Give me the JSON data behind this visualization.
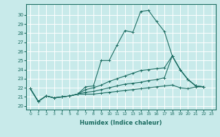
{
  "title": "",
  "xlabel": "Humidex (Indice chaleur)",
  "bg_color": "#c8eaea",
  "grid_color": "#ffffff",
  "line_color": "#1a6b60",
  "xlim": [
    -0.5,
    23.5
  ],
  "ylim": [
    19.6,
    31.2
  ],
  "xtick_labels": [
    "0",
    "1",
    "2",
    "3",
    "4",
    "5",
    "6",
    "7",
    "8",
    "9",
    "10",
    "11",
    "12",
    "13",
    "14",
    "15",
    "16",
    "17",
    "18",
    "19",
    "20",
    "21",
    "22",
    "23"
  ],
  "ytick_values": [
    20,
    21,
    22,
    23,
    24,
    25,
    26,
    27,
    28,
    29,
    30
  ],
  "series": [
    {
      "x": [
        0,
        1,
        2,
        3,
        4,
        5,
        6,
        7,
        8,
        9,
        10,
        11,
        12,
        13,
        14,
        15,
        16,
        17,
        18,
        19,
        20,
        21,
        22
      ],
      "y": [
        21.9,
        20.5,
        21.1,
        20.9,
        21.0,
        21.1,
        21.3,
        22.1,
        22.2,
        25.0,
        25.0,
        26.7,
        28.3,
        28.1,
        30.4,
        30.5,
        29.3,
        28.2,
        25.5,
        24.0,
        22.9,
        22.2,
        22.1
      ]
    },
    {
      "x": [
        0,
        1,
        2,
        3,
        4,
        5,
        6,
        7,
        8,
        9,
        10,
        11,
        12,
        13,
        14,
        15,
        16,
        17,
        18,
        19,
        20,
        21,
        22
      ],
      "y": [
        21.9,
        20.5,
        21.1,
        20.9,
        21.0,
        21.1,
        21.3,
        21.8,
        22.0,
        22.3,
        22.7,
        23.0,
        23.3,
        23.6,
        23.9,
        24.0,
        24.1,
        24.2,
        25.5,
        24.0,
        22.9,
        22.2,
        22.1
      ]
    },
    {
      "x": [
        0,
        1,
        2,
        3,
        4,
        5,
        6,
        7,
        8,
        9,
        10,
        11,
        12,
        13,
        14,
        15,
        16,
        17,
        18,
        19,
        20,
        21,
        22
      ],
      "y": [
        21.9,
        20.5,
        21.1,
        20.9,
        21.0,
        21.1,
        21.3,
        21.5,
        21.6,
        21.8,
        22.0,
        22.2,
        22.4,
        22.5,
        22.6,
        22.8,
        22.9,
        23.1,
        25.5,
        24.0,
        22.9,
        22.2,
        22.1
      ]
    },
    {
      "x": [
        0,
        1,
        2,
        3,
        4,
        5,
        6,
        7,
        8,
        9,
        10,
        11,
        12,
        13,
        14,
        15,
        16,
        17,
        18,
        19,
        20,
        21,
        22
      ],
      "y": [
        21.9,
        20.5,
        21.1,
        20.9,
        21.0,
        21.1,
        21.3,
        21.3,
        21.3,
        21.4,
        21.5,
        21.6,
        21.7,
        21.8,
        21.9,
        22.0,
        22.1,
        22.2,
        22.3,
        22.0,
        21.9,
        22.1,
        22.1
      ]
    }
  ]
}
